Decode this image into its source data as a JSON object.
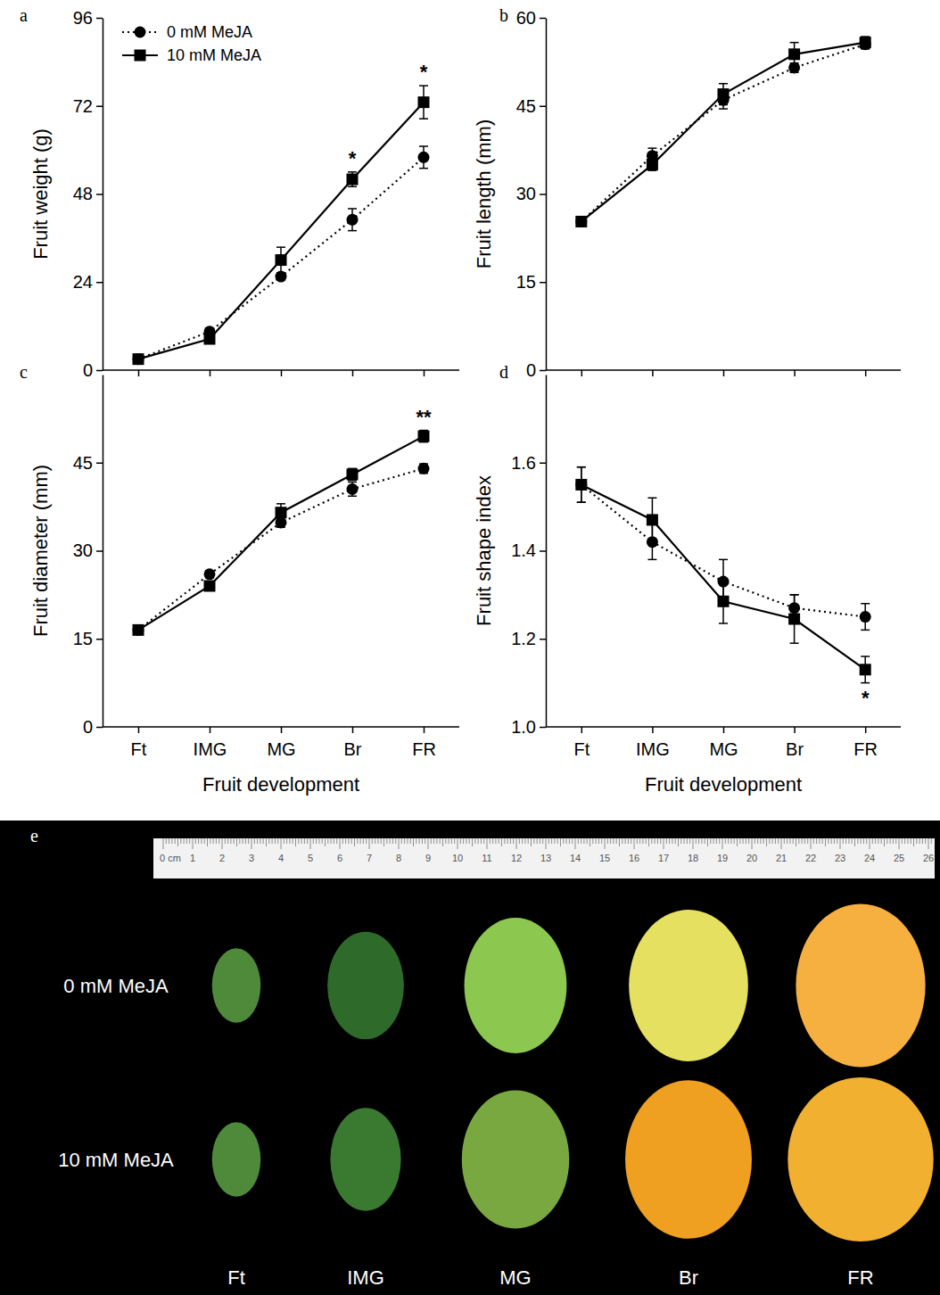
{
  "chart_data": [
    {
      "type": "line",
      "panel": "a",
      "y_label": "Fruit weight (g)",
      "x_label": null,
      "categories": [
        "Ft",
        "IMG",
        "MG",
        "Br",
        "FR"
      ],
      "series": [
        {
          "name": "0 mM MeJA",
          "color": "#000000",
          "marker": "circle",
          "line_style": "dotted",
          "values": [
            3,
            10.5,
            25.5,
            41,
            58
          ],
          "errors": [
            0.5,
            1,
            1,
            3,
            3
          ]
        },
        {
          "name": "10 mM MeJA",
          "color": "#000000",
          "marker": "square",
          "line_style": "solid",
          "values": [
            3,
            8.5,
            30,
            52,
            73
          ],
          "errors": [
            0.5,
            1,
            3.5,
            2,
            4.5
          ]
        }
      ],
      "significance": [
        null,
        null,
        null,
        "*",
        "*"
      ],
      "ylim": [
        0,
        96
      ],
      "yticks": [
        0,
        24,
        48,
        72,
        96
      ],
      "tick_labels": "y",
      "legend": "top-left",
      "grid": false
    },
    {
      "type": "line",
      "panel": "b",
      "y_label": "Fruit length (mm)",
      "x_label": null,
      "categories": [
        "Ft",
        "IMG",
        "MG",
        "Br",
        "FR"
      ],
      "series": [
        {
          "name": "0 mM MeJA",
          "color": "#000000",
          "marker": "circle",
          "line_style": "dotted",
          "values": [
            25.3,
            36.5,
            46,
            51.5,
            55.5
          ],
          "errors": [
            0.4,
            1.3,
            1.5,
            0.8,
            0.8
          ]
        },
        {
          "name": "10 mM MeJA",
          "color": "#000000",
          "marker": "square",
          "line_style": "solid",
          "values": [
            25.3,
            35,
            47,
            53.8,
            55.8
          ],
          "errors": [
            0.4,
            1,
            1.8,
            2,
            1
          ]
        }
      ],
      "ylim": [
        0,
        60
      ],
      "yticks": [
        0,
        15,
        30,
        45,
        60
      ],
      "tick_labels": "y",
      "grid": false
    },
    {
      "type": "line",
      "panel": "c",
      "y_label": "Fruit diameter (mm)",
      "x_label": "Fruit development",
      "categories": [
        "Ft",
        "IMG",
        "MG",
        "Br",
        "FR"
      ],
      "series": [
        {
          "name": "0 mM MeJA",
          "color": "#000000",
          "marker": "circle",
          "line_style": "dotted",
          "values": [
            16.5,
            26,
            34.8,
            40.5,
            44
          ],
          "errors": [
            0.5,
            0.6,
            0.8,
            1.2,
            0.8
          ]
        },
        {
          "name": "10 mM MeJA",
          "color": "#000000",
          "marker": "square",
          "line_style": "solid",
          "values": [
            16.5,
            24,
            36.5,
            43,
            49.5
          ],
          "errors": [
            0.5,
            0.6,
            1.5,
            1,
            1
          ]
        }
      ],
      "significance": [
        null,
        null,
        null,
        null,
        "**"
      ],
      "ylim": [
        0,
        60
      ],
      "yticks": [
        0,
        15,
        30,
        45
      ],
      "grid": false
    },
    {
      "type": "line",
      "panel": "d",
      "y_label": "Fruit shape index",
      "x_label": "Fruit development",
      "categories": [
        "Ft",
        "IMG",
        "MG",
        "Br",
        "FR"
      ],
      "series": [
        {
          "name": "0 mM MeJA",
          "color": "#000000",
          "marker": "circle",
          "line_style": "dotted",
          "values": [
            1.55,
            1.42,
            1.33,
            1.27,
            1.25
          ],
          "errors": [
            0.04,
            0.04,
            0.05,
            0.03,
            0.03
          ]
        },
        {
          "name": "10 mM MeJA",
          "color": "#000000",
          "marker": "square",
          "line_style": "solid",
          "values": [
            1.55,
            1.47,
            1.285,
            1.245,
            1.13
          ],
          "errors": [
            0.04,
            0.05,
            0.05,
            0.055,
            0.03
          ]
        }
      ],
      "significance": [
        null,
        null,
        null,
        null,
        "*"
      ],
      "ylim": [
        1.0,
        1.8
      ],
      "yticks": [
        {
          "value": 1.0,
          "label": "1.0"
        },
        1.2,
        1.4,
        1.6
      ],
      "grid": false
    }
  ],
  "photo": {
    "panel": "e",
    "ruler_labels": [
      "0 cm",
      "1",
      "2",
      "3",
      "4",
      "5",
      "6",
      "7",
      "8",
      "9",
      "10",
      "11",
      "12",
      "13",
      "14",
      "15",
      "16",
      "17",
      "18",
      "19",
      "20",
      "21",
      "22",
      "23",
      "24",
      "25",
      "26"
    ],
    "columns": [
      "Ft",
      "IMG",
      "MG",
      "Br",
      "FR"
    ],
    "rows": [
      {
        "name": "0 mM MeJA",
        "colors": [
          "#4f8a3a",
          "#2e6b2a",
          "#8cc850",
          "#e6e060",
          "#f5b040"
        ]
      },
      {
        "name": "10 mM MeJA",
        "colors": [
          "#4f8a3a",
          "#3a7a30",
          "#7aa840",
          "#f0a020",
          "#f2b030"
        ]
      }
    ]
  }
}
